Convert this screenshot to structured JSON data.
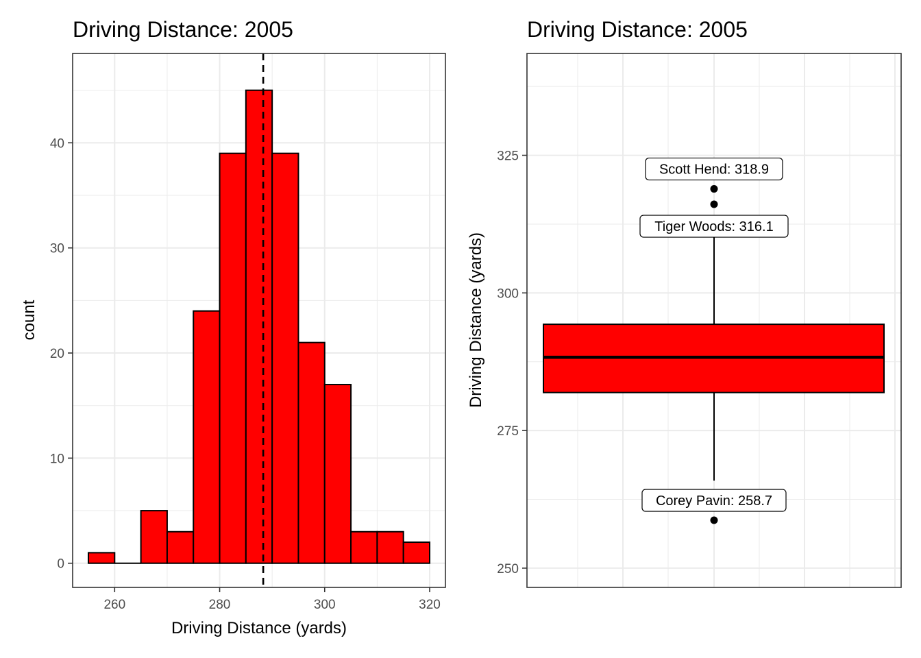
{
  "chart_data": [
    {
      "type": "histogram",
      "title": "Driving Distance: 2005",
      "xlabel": "Driving Distance (yards)",
      "ylabel": "count",
      "xlim": [
        252,
        323
      ],
      "ylim": [
        -2.3,
        48.5
      ],
      "xticks": [
        260,
        280,
        300,
        320
      ],
      "yticks": [
        0,
        10,
        20,
        30,
        40
      ],
      "grid": true,
      "bar_color": "#ff0000",
      "bins": [
        {
          "x0": 255,
          "x1": 260,
          "count": 1
        },
        {
          "x0": 260,
          "x1": 265,
          "count": 0
        },
        {
          "x0": 265,
          "x1": 270,
          "count": 5
        },
        {
          "x0": 270,
          "x1": 275,
          "count": 3
        },
        {
          "x0": 275,
          "x1": 280,
          "count": 24
        },
        {
          "x0": 280,
          "x1": 285,
          "count": 39
        },
        {
          "x0": 285,
          "x1": 290,
          "count": 45
        },
        {
          "x0": 290,
          "x1": 295,
          "count": 39
        },
        {
          "x0": 295,
          "x1": 300,
          "count": 21
        },
        {
          "x0": 300,
          "x1": 305,
          "count": 17
        },
        {
          "x0": 305,
          "x1": 310,
          "count": 3
        },
        {
          "x0": 310,
          "x1": 315,
          "count": 3
        },
        {
          "x0": 315,
          "x1": 320,
          "count": 2
        }
      ],
      "mean_line": {
        "x": 288.3,
        "style": "dashed",
        "color": "#000000"
      }
    },
    {
      "type": "box",
      "title": "Driving Distance: 2005",
      "xlabel": "",
      "ylabel": "Driving Distance (yards)",
      "ylim": [
        246.5,
        343.5
      ],
      "yticks": [
        250,
        275,
        300,
        325
      ],
      "grid": true,
      "box_color": "#ff0000",
      "box": {
        "q1": 281.9,
        "median": 288.3,
        "q3": 294.3,
        "whisker_low": 265.9,
        "whisker_high": 313.3
      },
      "outliers": [
        318.9,
        316.1,
        258.7
      ],
      "annotations": [
        {
          "y": 318.9,
          "text": "Scott Hend: 318.9"
        },
        {
          "y": 316.1,
          "text": "Tiger Woods: 316.1"
        },
        {
          "y": 258.7,
          "text": "Corey Pavin: 258.7"
        }
      ]
    }
  ]
}
